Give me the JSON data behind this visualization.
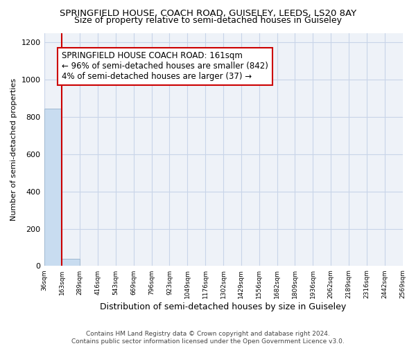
{
  "title": "SPRINGFIELD HOUSE, COACH ROAD, GUISELEY, LEEDS, LS20 8AY",
  "subtitle": "Size of property relative to semi-detached houses in Guiseley",
  "xlabel": "Distribution of semi-detached houses by size in Guiseley",
  "ylabel": "Number of semi-detached properties",
  "footer_line1": "Contains HM Land Registry data © Crown copyright and database right 2024.",
  "footer_line2": "Contains public sector information licensed under the Open Government Licence v3.0.",
  "annotation_line1": "SPRINGFIELD HOUSE COACH ROAD: 161sqm",
  "annotation_line2": "← 96% of semi-detached houses are smaller (842)",
  "annotation_line3": "4% of semi-detached houses are larger (37) →",
  "bar_values": [
    842,
    37,
    0,
    0,
    0,
    0,
    0,
    0,
    0,
    0,
    0,
    0,
    0,
    0,
    0,
    0,
    0,
    0,
    0,
    0
  ],
  "bar_color": "#c8dcf0",
  "bar_edge_color": "#a0b8d0",
  "x_labels": [
    "36sqm",
    "163sqm",
    "289sqm",
    "416sqm",
    "543sqm",
    "669sqm",
    "796sqm",
    "923sqm",
    "1049sqm",
    "1176sqm",
    "1302sqm",
    "1429sqm",
    "1556sqm",
    "1682sqm",
    "1809sqm",
    "1936sqm",
    "2062sqm",
    "2189sqm",
    "2316sqm",
    "2442sqm",
    "2569sqm"
  ],
  "ylim": [
    0,
    1250
  ],
  "yticks": [
    0,
    200,
    400,
    600,
    800,
    1000,
    1200
  ],
  "property_marker_color": "#cc0000",
  "grid_color": "#c8d4e8",
  "bg_color": "#ffffff",
  "plot_bg_color": "#eef2f8",
  "title_fontsize": 9.5,
  "subtitle_fontsize": 9,
  "ylabel_fontsize": 8,
  "xlabel_fontsize": 9,
  "annotation_fontsize": 8.5,
  "footer_fontsize": 6.5
}
